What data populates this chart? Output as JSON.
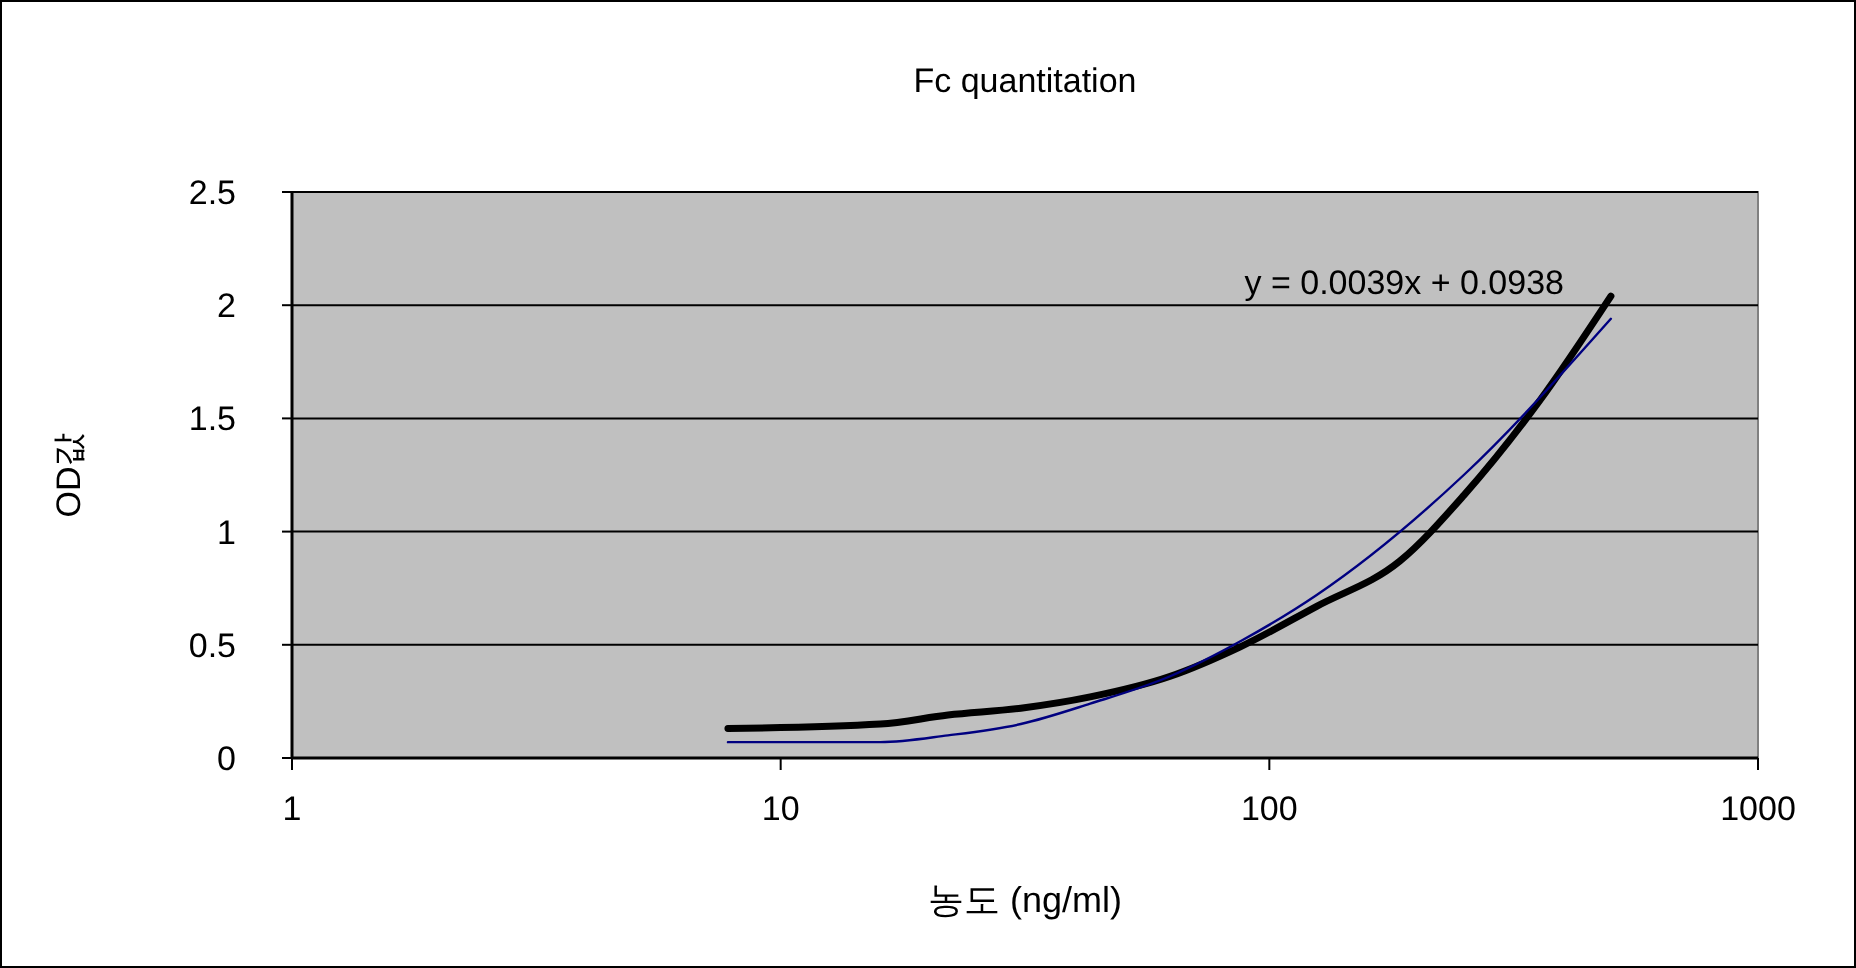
{
  "chart_data": {
    "type": "line",
    "title": "Fc quantitation",
    "xlabel": "농도 (ng/ml)",
    "ylabel": "OD값",
    "annotations": [
      "y = 0.0039x + 0.0938"
    ],
    "log": "x",
    "grid": "y",
    "marker": "none",
    "line_style": "solid",
    "xlim": [
      1,
      1000
    ],
    "xticks": [
      1,
      10,
      100,
      1000
    ],
    "ylim": [
      0,
      2.5
    ],
    "yticks": [
      0,
      0.5,
      1,
      1.5,
      2,
      2.5
    ],
    "series": [
      {
        "color": "#000000",
        "x": [
          7.8,
          16,
          22,
          31,
          43,
          62.5,
          87,
          125,
          185,
          250,
          358,
          500
        ],
        "values": [
          0.13,
          0.15,
          0.19,
          0.22,
          0.27,
          0.36,
          0.49,
          0.67,
          0.87,
          1.16,
          1.58,
          2.04
        ]
      },
      {
        "color": "#000080",
        "x": [
          7.8,
          16,
          22,
          31,
          43,
          62.5,
          88,
          125,
          250,
          500
        ],
        "values": [
          0.07,
          0.07,
          0.1,
          0.15,
          0.24,
          0.36,
          0.52,
          0.72,
          1.25,
          1.94
        ]
      }
    ]
  }
}
